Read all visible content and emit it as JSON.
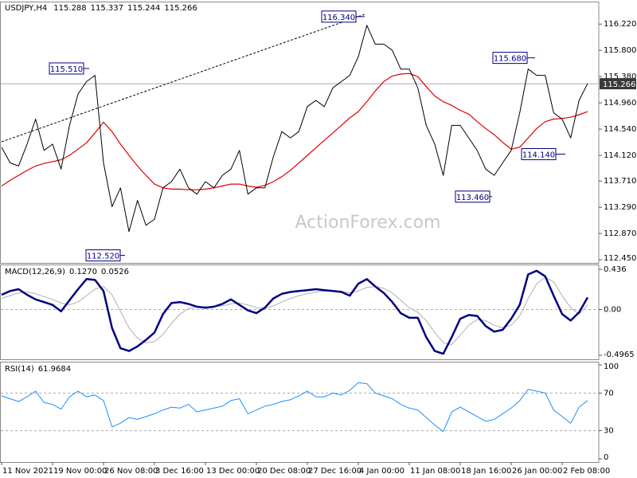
{
  "chart_data": [
    {
      "type": "line",
      "title": "USDJPY,H4",
      "ohlc": [
        115.288,
        115.337,
        115.244,
        115.266
      ],
      "values": [
        114.25,
        114.0,
        113.95,
        114.3,
        114.7,
        114.2,
        114.3,
        113.9,
        114.6,
        115.1,
        115.3,
        115.4,
        114.0,
        113.3,
        113.6,
        112.9,
        113.4,
        113.0,
        113.1,
        113.6,
        113.7,
        113.9,
        113.6,
        113.5,
        113.7,
        113.6,
        113.8,
        113.9,
        114.2,
        113.5,
        113.6,
        113.6,
        114.1,
        114.5,
        114.4,
        114.5,
        114.9,
        115.0,
        114.9,
        115.2,
        115.3,
        115.4,
        115.7,
        116.2,
        115.9,
        115.9,
        115.8,
        115.5,
        115.5,
        115.2,
        114.6,
        114.3,
        113.8,
        114.6,
        114.6,
        114.4,
        114.2,
        113.9,
        113.8,
        114.0,
        114.2,
        114.8,
        115.5,
        115.4,
        115.4,
        114.8,
        114.7,
        114.4,
        115.0,
        115.27
      ],
      "color": "#000000",
      "series": [
        {
          "color": "#e00000",
          "values": [
            113.63,
            113.72,
            113.8,
            113.88,
            113.95,
            113.99,
            114.02,
            114.05,
            114.12,
            114.22,
            114.32,
            114.48,
            114.65,
            114.5,
            114.3,
            114.12,
            113.95,
            113.8,
            113.66,
            113.6,
            113.58,
            113.58,
            113.57,
            113.57,
            113.58,
            113.6,
            113.63,
            113.66,
            113.66,
            113.63,
            113.61,
            113.64,
            113.7,
            113.78,
            113.88,
            114.0,
            114.12,
            114.24,
            114.36,
            114.48,
            114.6,
            114.72,
            114.82,
            114.98,
            115.15,
            115.3,
            115.39,
            115.42,
            115.43,
            115.38,
            115.22,
            115.07,
            114.98,
            114.92,
            114.84,
            114.78,
            114.66,
            114.55,
            114.45,
            114.33,
            114.22,
            114.25,
            114.4,
            114.55,
            114.66,
            114.7,
            114.71,
            114.73,
            114.77,
            114.82
          ]
        }
      ],
      "annotations": [
        {
          "value": 115.51,
          "label": "115.510"
        },
        {
          "value": 116.34,
          "label": "116.340"
        },
        {
          "value": 115.68,
          "label": "115.680"
        },
        {
          "value": 112.52,
          "label": "112.520"
        },
        {
          "value": 113.46,
          "label": "113.460"
        },
        {
          "value": 114.14,
          "label": "114.140"
        }
      ],
      "watermark": "ActionForex.com",
      "ylim": [
        112.4,
        116.58
      ],
      "yticks": [
        {
          "value": 116.22,
          "label": "116.220"
        },
        {
          "value": 115.8,
          "label": "115.800"
        },
        {
          "value": 115.38,
          "label": "115.380"
        },
        {
          "value": 114.96,
          "label": "114.960"
        },
        {
          "value": 114.54,
          "label": "114.540"
        },
        {
          "value": 114.12,
          "label": "114.120"
        },
        {
          "value": 113.71,
          "label": "113.710"
        },
        {
          "value": 113.29,
          "label": "113.290"
        },
        {
          "value": 112.87,
          "label": "112.870"
        },
        {
          "value": 112.45,
          "label": "112.450"
        }
      ]
    },
    {
      "type": "macd",
      "title": "MACD(12,26,9)",
      "current": [
        {
          "value": 0.127,
          "label": "0.1270"
        },
        0.0526
      ],
      "series": [
        {
          "color": "#000080",
          "values": [
            0.16,
            0.2,
            0.22,
            0.16,
            0.11,
            0.08,
            0.05,
            -0.02,
            0.1,
            0.22,
            0.33,
            0.32,
            0.2,
            -0.2,
            -0.42,
            -0.45,
            -0.4,
            -0.33,
            -0.25,
            -0.05,
            0.07,
            0.08,
            0.06,
            0.03,
            0.02,
            0.03,
            0.06,
            0.11,
            0.05,
            -0.01,
            -0.04,
            0.02,
            0.12,
            0.17,
            0.19,
            0.2,
            0.21,
            0.22,
            0.21,
            0.2,
            0.19,
            0.15,
            0.28,
            0.33,
            0.25,
            0.18,
            0.08,
            -0.04,
            -0.09,
            -0.09,
            -0.3,
            -0.45,
            -0.48,
            -0.3,
            -0.1,
            -0.06,
            -0.07,
            -0.18,
            -0.24,
            -0.22,
            -0.1,
            0.05,
            0.38,
            0.42,
            0.36,
            0.15,
            -0.05,
            -0.12,
            -0.03,
            0.13
          ]
        },
        {
          "color": "#b0b0b0",
          "values": [
            0.12,
            0.15,
            0.18,
            0.19,
            0.17,
            0.14,
            0.11,
            0.07,
            0.05,
            0.08,
            0.15,
            0.22,
            0.25,
            0.16,
            -0.02,
            -0.2,
            -0.31,
            -0.36,
            -0.35,
            -0.27,
            -0.15,
            -0.05,
            0.01,
            0.03,
            0.03,
            0.03,
            0.04,
            0.06,
            0.07,
            0.05,
            0.02,
            0.01,
            0.04,
            0.08,
            0.12,
            0.15,
            0.17,
            0.19,
            0.2,
            0.2,
            0.2,
            0.18,
            0.2,
            0.24,
            0.25,
            0.23,
            0.18,
            0.1,
            0.02,
            -0.03,
            -0.12,
            -0.25,
            -0.36,
            -0.38,
            -0.28,
            -0.17,
            -0.11,
            -0.12,
            -0.17,
            -0.2,
            -0.17,
            -0.07,
            0.12,
            0.28,
            0.35,
            0.3,
            0.15,
            0.02,
            -0.05,
            0.05
          ]
        }
      ],
      "levels": [
        0
      ],
      "ylim": [
        -0.54,
        0.488
      ],
      "yticks": [
        0.436,
        {
          "value": 0,
          "label": "0.00"
        },
        -0.4965
      ]
    },
    {
      "type": "rsi",
      "title": "RSI(14)",
      "current": [
        61.9684
      ],
      "categories": [
        "11 Nov 2021",
        null,
        null,
        null,
        null,
        null,
        "19 Nov 00:00",
        null,
        null,
        null,
        null,
        null,
        "26 Nov 08:00",
        null,
        null,
        null,
        null,
        null,
        "3 Dec 16:00",
        null,
        null,
        null,
        null,
        null,
        "13 Dec 00:00",
        null,
        null,
        null,
        null,
        null,
        "20 Dec 08:00",
        null,
        null,
        null,
        null,
        null,
        "27 Dec 16:00",
        null,
        null,
        null,
        null,
        null,
        "4 Jan 00:00",
        null,
        null,
        null,
        null,
        null,
        "11 Jan 08:00",
        null,
        null,
        null,
        null,
        null,
        "18 Jan 16:00",
        null,
        null,
        null,
        null,
        null,
        "26 Jan 00:00",
        null,
        null,
        null,
        null,
        null,
        "2 Feb 08:00",
        null,
        null,
        null
      ],
      "series": [
        {
          "color": "#1e90ff",
          "values": [
            67,
            64,
            61,
            66,
            72,
            60,
            58,
            53,
            66,
            72,
            66,
            68,
            62,
            34,
            38,
            44,
            42,
            45,
            48,
            52,
            55,
            54,
            58,
            50,
            52,
            54,
            56,
            62,
            64,
            48,
            52,
            56,
            58,
            61,
            63,
            67,
            72,
            66,
            66,
            70,
            68,
            73,
            81,
            80,
            70,
            67,
            64,
            58,
            54,
            52,
            44,
            36,
            29,
            50,
            55,
            50,
            45,
            40,
            42,
            48,
            54,
            62,
            74,
            72,
            70,
            52,
            45,
            38,
            55,
            62
          ]
        }
      ],
      "levels": [
        70,
        30
      ],
      "ylim": [
        0,
        100
      ],
      "yticks": [
        100,
        70,
        30,
        0
      ]
    }
  ]
}
